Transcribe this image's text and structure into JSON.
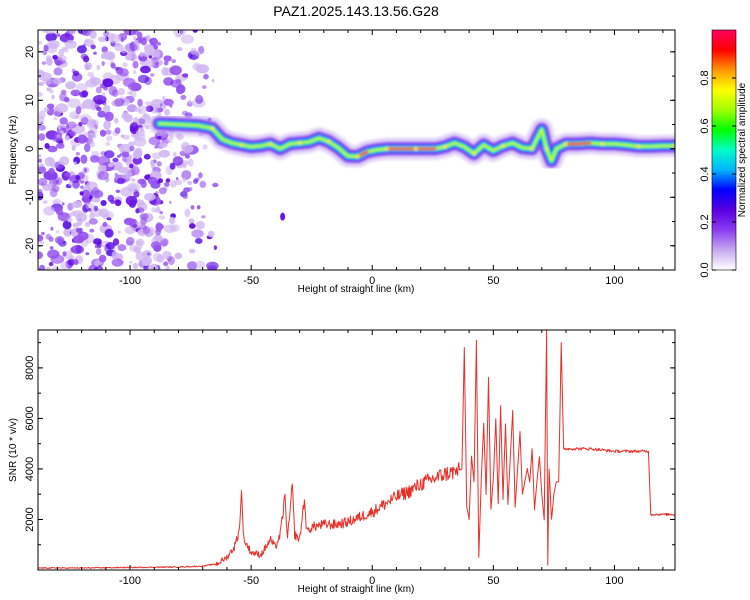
{
  "title": "PAZ1.2025.143.13.56.G28",
  "chart_data": [
    {
      "type": "heatmap",
      "xlabel": "Height of straight line (km)",
      "ylabel": "Frequency (Hz)",
      "xlim": [
        -138,
        125
      ],
      "ylim": [
        -25,
        24.5
      ],
      "xticks": [
        "-100",
        "-50",
        "0",
        "50",
        "100"
      ],
      "yticks": [
        "-20",
        "-10",
        "0",
        "10",
        "20"
      ],
      "colorbar": {
        "label": "Normalized spectral amplitude",
        "range": [
          0,
          1
        ],
        "ticks": [
          "0.0",
          "0.2",
          "0.4",
          "0.6",
          "0.8"
        ],
        "colormap": [
          "#ffffff",
          "#c8a8f0",
          "#8a3cf0",
          "#5a00e0",
          "#0000ff",
          "#00b4ff",
          "#00ffc8",
          "#00ff00",
          "#a0ff00",
          "#ffff00",
          "#ff9600",
          "#ff0000",
          "#ff0060"
        ]
      },
      "ridge": [
        {
          "x": -88,
          "f": 5.2
        },
        {
          "x": -80,
          "f": 5.0
        },
        {
          "x": -72,
          "f": 4.8
        },
        {
          "x": -66,
          "f": 4.2
        },
        {
          "x": -62,
          "f": 2.0
        },
        {
          "x": -58,
          "f": 1.2
        },
        {
          "x": -54,
          "f": 0.8
        },
        {
          "x": -50,
          "f": 0.4
        },
        {
          "x": -46,
          "f": 0.6
        },
        {
          "x": -42,
          "f": 1.0
        },
        {
          "x": -38,
          "f": 0.0
        },
        {
          "x": -34,
          "f": 1.0
        },
        {
          "x": -30,
          "f": 1.2
        },
        {
          "x": -26,
          "f": 1.4
        },
        {
          "x": -22,
          "f": 2.2
        },
        {
          "x": -18,
          "f": 1.5
        },
        {
          "x": -14,
          "f": 0.2
        },
        {
          "x": -10,
          "f": -1.5
        },
        {
          "x": -6,
          "f": -1.6
        },
        {
          "x": -2,
          "f": -0.6
        },
        {
          "x": 2,
          "f": -0.2
        },
        {
          "x": 6,
          "f": 0.0
        },
        {
          "x": 10,
          "f": 0.0
        },
        {
          "x": 14,
          "f": 0.0
        },
        {
          "x": 18,
          "f": 0.0
        },
        {
          "x": 22,
          "f": 0.0
        },
        {
          "x": 26,
          "f": 0.0
        },
        {
          "x": 30,
          "f": 0.4
        },
        {
          "x": 34,
          "f": 1.2
        },
        {
          "x": 38,
          "f": 0.4
        },
        {
          "x": 42,
          "f": -1.0
        },
        {
          "x": 46,
          "f": 0.8
        },
        {
          "x": 50,
          "f": -0.4
        },
        {
          "x": 54,
          "f": 0.6
        },
        {
          "x": 58,
          "f": 1.2
        },
        {
          "x": 62,
          "f": 0.2
        },
        {
          "x": 66,
          "f": 0.0
        },
        {
          "x": 68,
          "f": 2.0
        },
        {
          "x": 70,
          "f": 4.0
        },
        {
          "x": 72,
          "f": 0.0
        },
        {
          "x": 74,
          "f": -2.5
        },
        {
          "x": 76,
          "f": 0.0
        },
        {
          "x": 80,
          "f": 1.0
        },
        {
          "x": 85,
          "f": 1.0
        },
        {
          "x": 90,
          "f": 1.2
        },
        {
          "x": 95,
          "f": 1.0
        },
        {
          "x": 100,
          "f": 1.0
        },
        {
          "x": 105,
          "f": 0.8
        },
        {
          "x": 110,
          "f": 0.5
        },
        {
          "x": 115,
          "f": 0.5
        },
        {
          "x": 120,
          "f": 0.6
        },
        {
          "x": 125,
          "f": 0.6
        }
      ]
    },
    {
      "type": "line",
      "xlabel": "Height of straight line (km)",
      "ylabel": "SNR (10 * v/v)",
      "xlim": [
        -138,
        125
      ],
      "ylim": [
        0,
        9500
      ],
      "xticks": [
        "-100",
        "-50",
        "0",
        "50",
        "100"
      ],
      "yticks": [
        "2000",
        "4000",
        "6000",
        "8000"
      ],
      "color": "#e8302a",
      "series": [
        {
          "values": [
            {
              "x": -138,
              "y": 80
            },
            {
              "x": -120,
              "y": 80
            },
            {
              "x": -100,
              "y": 100
            },
            {
              "x": -80,
              "y": 120
            },
            {
              "x": -70,
              "y": 150
            },
            {
              "x": -64,
              "y": 250
            },
            {
              "x": -60,
              "y": 500
            },
            {
              "x": -57,
              "y": 900
            },
            {
              "x": -55,
              "y": 1500
            },
            {
              "x": -54,
              "y": 3000
            },
            {
              "x": -53,
              "y": 1200
            },
            {
              "x": -50,
              "y": 700
            },
            {
              "x": -46,
              "y": 600
            },
            {
              "x": -42,
              "y": 1200
            },
            {
              "x": -40,
              "y": 900
            },
            {
              "x": -38,
              "y": 1400
            },
            {
              "x": -36,
              "y": 2900
            },
            {
              "x": -35,
              "y": 1200
            },
            {
              "x": -33,
              "y": 3300
            },
            {
              "x": -32,
              "y": 1400
            },
            {
              "x": -30,
              "y": 1200
            },
            {
              "x": -28,
              "y": 2800
            },
            {
              "x": -27,
              "y": 1500
            },
            {
              "x": -25,
              "y": 1700
            },
            {
              "x": -20,
              "y": 1800
            },
            {
              "x": -15,
              "y": 1800
            },
            {
              "x": -10,
              "y": 1900
            },
            {
              "x": -5,
              "y": 2100
            },
            {
              "x": 0,
              "y": 2300
            },
            {
              "x": 5,
              "y": 2600
            },
            {
              "x": 10,
              "y": 2900
            },
            {
              "x": 15,
              "y": 3100
            },
            {
              "x": 20,
              "y": 3400
            },
            {
              "x": 25,
              "y": 3600
            },
            {
              "x": 30,
              "y": 3800
            },
            {
              "x": 35,
              "y": 3900
            },
            {
              "x": 37,
              "y": 4000
            },
            {
              "x": 38,
              "y": 8800
            },
            {
              "x": 39,
              "y": 2500
            },
            {
              "x": 40,
              "y": 2000
            },
            {
              "x": 41,
              "y": 4500
            },
            {
              "x": 42,
              "y": 3500
            },
            {
              "x": 43,
              "y": 9100
            },
            {
              "x": 44,
              "y": 500
            },
            {
              "x": 45,
              "y": 3500
            },
            {
              "x": 46,
              "y": 5800
            },
            {
              "x": 47,
              "y": 3000
            },
            {
              "x": 48,
              "y": 7600
            },
            {
              "x": 49,
              "y": 2400
            },
            {
              "x": 50,
              "y": 3600
            },
            {
              "x": 51,
              "y": 6000
            },
            {
              "x": 52,
              "y": 2600
            },
            {
              "x": 53,
              "y": 6500
            },
            {
              "x": 54,
              "y": 2800
            },
            {
              "x": 55,
              "y": 5800
            },
            {
              "x": 56,
              "y": 2600
            },
            {
              "x": 58,
              "y": 6300
            },
            {
              "x": 59,
              "y": 2500
            },
            {
              "x": 61,
              "y": 5500
            },
            {
              "x": 62,
              "y": 3000
            },
            {
              "x": 64,
              "y": 4000
            },
            {
              "x": 65,
              "y": 3500
            },
            {
              "x": 66,
              "y": 4800
            },
            {
              "x": 67,
              "y": 2400
            },
            {
              "x": 68,
              "y": 3500
            },
            {
              "x": 69,
              "y": 4500
            },
            {
              "x": 70,
              "y": 3000
            },
            {
              "x": 71,
              "y": 2000
            },
            {
              "x": 72,
              "y": 9500
            },
            {
              "x": 72.5,
              "y": 200
            },
            {
              "x": 73,
              "y": 4000
            },
            {
              "x": 74,
              "y": 2000
            },
            {
              "x": 75,
              "y": 3000
            },
            {
              "x": 76,
              "y": 3500
            },
            {
              "x": 77,
              "y": 3500
            },
            {
              "x": 78,
              "y": 9000
            },
            {
              "x": 79,
              "y": 4800
            },
            {
              "x": 90,
              "y": 4800
            },
            {
              "x": 100,
              "y": 4700
            },
            {
              "x": 110,
              "y": 4700
            },
            {
              "x": 113,
              "y": 4700
            },
            {
              "x": 114,
              "y": 4700
            },
            {
              "x": 115,
              "y": 2200
            },
            {
              "x": 118,
              "y": 2200
            },
            {
              "x": 125,
              "y": 2200
            }
          ]
        }
      ]
    }
  ]
}
